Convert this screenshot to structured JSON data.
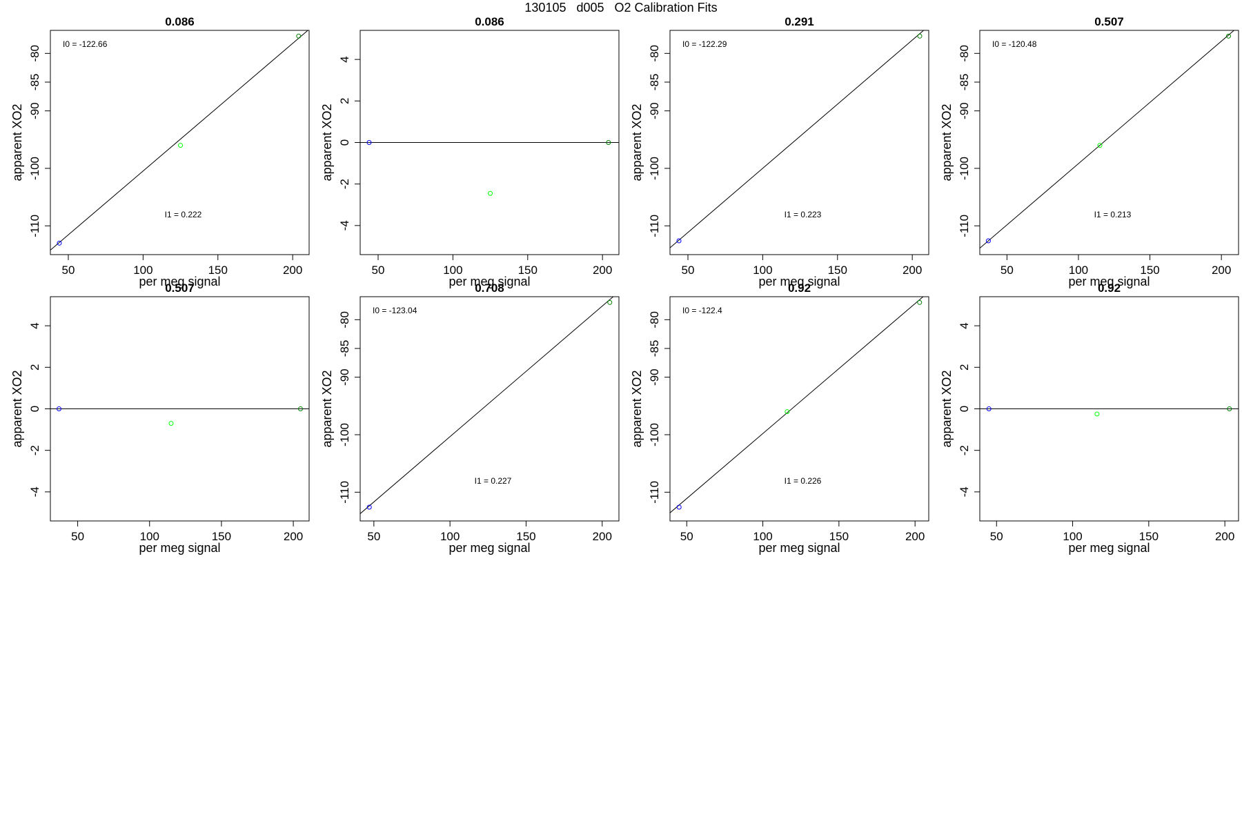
{
  "title": "130105   d005   O2 Calibration Fits",
  "colors": {
    "standard_1": "#0000ff",
    "standard_2": "#00ff00",
    "standard_3": "#008000",
    "fit_line": "#000000",
    "frame": "#000000"
  },
  "chart_data": [
    {
      "type": "scatter",
      "title": "0.086",
      "xlabel": "per meg signal",
      "ylabel": "apparent XO2",
      "xlim": [
        38,
        211
      ],
      "ylim": [
        -115,
        -76
      ],
      "xticks": [
        50,
        100,
        150,
        200
      ],
      "yticks": [
        -110,
        -100,
        -90,
        -85,
        -80
      ],
      "points": [
        {
          "x": 44,
          "y": -113,
          "color": "#0000ff"
        },
        {
          "x": 125,
          "y": -96,
          "color": "#00ff00"
        },
        {
          "x": 204,
          "y": -77,
          "color": "#008000"
        }
      ],
      "fit_line": {
        "intercept": -122.66,
        "slope": 0.222
      },
      "annotations": {
        "intercept_label": "I0 =  -122.66",
        "slope_label": "I1 =  0.222"
      }
    },
    {
      "type": "scatter",
      "title": "0.086",
      "xlabel": "per meg signal",
      "ylabel": "apparent XO2",
      "xlim": [
        38,
        211
      ],
      "ylim": [
        -5.4,
        5.4
      ],
      "xticks": [
        50,
        100,
        150,
        200
      ],
      "yticks": [
        -4,
        -2,
        0,
        2,
        4
      ],
      "points": [
        {
          "x": 44,
          "y": 0,
          "color": "#0000ff"
        },
        {
          "x": 125,
          "y": -2.45,
          "color": "#00ff00"
        },
        {
          "x": 204,
          "y": 0,
          "color": "#008000"
        }
      ],
      "fit_line": {
        "intercept": 0,
        "slope": 0
      }
    },
    {
      "type": "scatter",
      "title": "0.291",
      "xlabel": "per meg signal",
      "ylabel": "apparent XO2",
      "xlim": [
        38,
        211
      ],
      "ylim": [
        -115,
        -76
      ],
      "xticks": [
        50,
        100,
        150,
        200
      ],
      "yticks": [
        -110,
        -100,
        -90,
        -85,
        -80
      ],
      "points": [
        {
          "x": 44,
          "y": -112.6,
          "color": "#0000ff"
        },
        {
          "x": 205,
          "y": -77,
          "color": "#008000"
        }
      ],
      "fit_line": {
        "intercept": -122.29,
        "slope": 0.223
      },
      "annotations": {
        "intercept_label": "I0 =  -122.29",
        "slope_label": "I1 =  0.223"
      }
    },
    {
      "type": "scatter",
      "title": "0.507",
      "xlabel": "per meg signal",
      "ylabel": "apparent XO2",
      "xlim": [
        31,
        212
      ],
      "ylim": [
        -115,
        -76
      ],
      "xticks": [
        50,
        100,
        150,
        200
      ],
      "yticks": [
        -110,
        -100,
        -90,
        -85,
        -80
      ],
      "points": [
        {
          "x": 37,
          "y": -112.6,
          "color": "#0000ff"
        },
        {
          "x": 115,
          "y": -96,
          "color": "#00ff00"
        },
        {
          "x": 205,
          "y": -77,
          "color": "#008000"
        }
      ],
      "fit_line": {
        "intercept": -120.48,
        "slope": 0.213
      },
      "annotations": {
        "intercept_label": "I0 =  -120.48",
        "slope_label": "I1 =  0.213"
      }
    },
    {
      "type": "scatter",
      "title": "0.507",
      "xlabel": "per meg signal",
      "ylabel": "apparent XO2",
      "xlim": [
        31,
        211
      ],
      "ylim": [
        -5.4,
        5.4
      ],
      "xticks": [
        50,
        100,
        150,
        200
      ],
      "yticks": [
        -4,
        -2,
        0,
        2,
        4
      ],
      "points": [
        {
          "x": 37,
          "y": 0,
          "color": "#0000ff"
        },
        {
          "x": 115,
          "y": -0.7,
          "color": "#00ff00"
        },
        {
          "x": 205,
          "y": 0,
          "color": "#008000"
        }
      ],
      "fit_line": {
        "intercept": 0,
        "slope": 0
      }
    },
    {
      "type": "scatter",
      "title": "0.708",
      "xlabel": "per meg signal",
      "ylabel": "apparent XO2",
      "xlim": [
        41,
        211
      ],
      "ylim": [
        -115,
        -76
      ],
      "xticks": [
        50,
        100,
        150,
        200
      ],
      "yticks": [
        -110,
        -100,
        -90,
        -85,
        -80
      ],
      "points": [
        {
          "x": 47,
          "y": -112.6,
          "color": "#0000ff"
        },
        {
          "x": 205,
          "y": -77,
          "color": "#008000"
        }
      ],
      "fit_line": {
        "intercept": -123.04,
        "slope": 0.227
      },
      "annotations": {
        "intercept_label": "I0 =  -123.04",
        "slope_label": "I1 =  0.227"
      }
    },
    {
      "type": "scatter",
      "title": "0.92",
      "xlabel": "per meg signal",
      "ylabel": "apparent XO2",
      "xlim": [
        39,
        209
      ],
      "ylim": [
        -115,
        -76
      ],
      "xticks": [
        50,
        100,
        150,
        200
      ],
      "yticks": [
        -110,
        -100,
        -90,
        -85,
        -80
      ],
      "points": [
        {
          "x": 45,
          "y": -112.6,
          "color": "#0000ff"
        },
        {
          "x": 116,
          "y": -96,
          "color": "#00ff00"
        },
        {
          "x": 203,
          "y": -77,
          "color": "#008000"
        }
      ],
      "fit_line": {
        "intercept": -122.4,
        "slope": 0.226
      },
      "annotations": {
        "intercept_label": "I0 =  -122.4",
        "slope_label": "I1 =  0.226"
      }
    },
    {
      "type": "scatter",
      "title": "0.92",
      "xlabel": "per meg signal",
      "ylabel": "apparent XO2",
      "xlim": [
        39,
        209
      ],
      "ylim": [
        -5.4,
        5.4
      ],
      "xticks": [
        50,
        100,
        150,
        200
      ],
      "yticks": [
        -4,
        -2,
        0,
        2,
        4
      ],
      "points": [
        {
          "x": 45,
          "y": 0,
          "color": "#0000ff"
        },
        {
          "x": 116,
          "y": -0.25,
          "color": "#00ff00"
        },
        {
          "x": 203,
          "y": 0,
          "color": "#008000"
        }
      ],
      "fit_line": {
        "intercept": 0,
        "slope": 0
      }
    }
  ]
}
